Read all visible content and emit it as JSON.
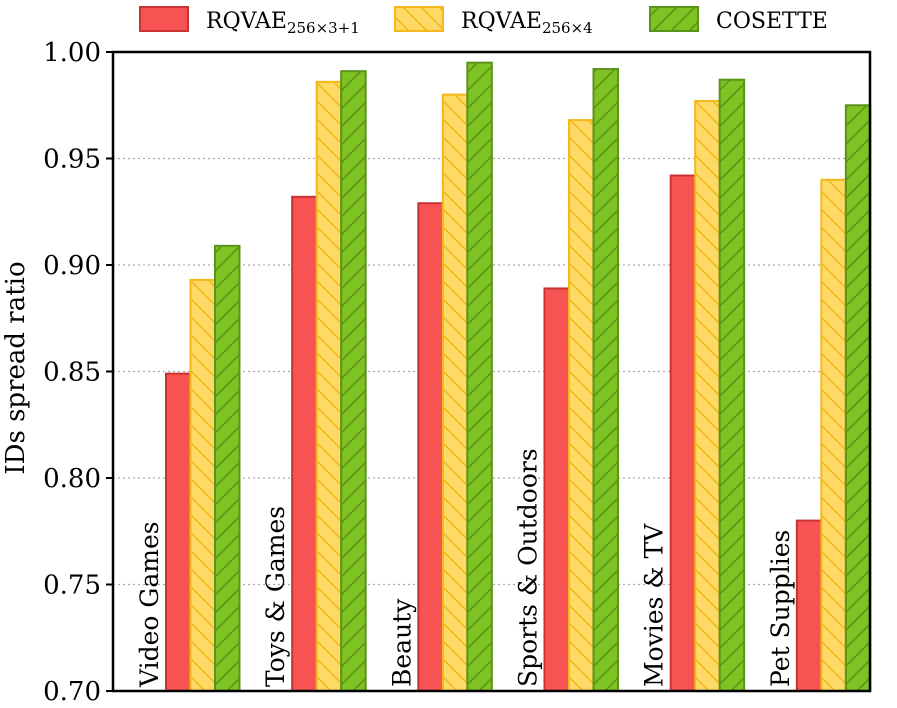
{
  "chart_data": {
    "type": "bar",
    "title": "",
    "xlabel": "",
    "ylabel": "IDs spread ratio",
    "ylim": [
      0.7,
      1.0
    ],
    "yticks": [
      "0.70",
      "0.75",
      "0.80",
      "0.85",
      "0.90",
      "0.95",
      "1.00"
    ],
    "grid": "horizontal-dotted",
    "legend_position": "top",
    "categories": [
      "Video Games",
      "Toys & Games",
      "Beauty",
      "Sports & Outdoors",
      "Movies & TV",
      "Pet Supplies"
    ],
    "series": [
      {
        "name": "RQVAE",
        "subscript": "256×3+1",
        "color": "#f75353",
        "edge": "#c93333",
        "hatch": "none",
        "values": [
          0.849,
          0.932,
          0.929,
          0.889,
          0.942,
          0.78
        ]
      },
      {
        "name": "RQVAE",
        "subscript": "256×4",
        "color": "#ffd966",
        "edge": "#f2b81c",
        "hatch": "backslash",
        "values": [
          0.893,
          0.986,
          0.98,
          0.968,
          0.977,
          0.94
        ]
      },
      {
        "name": "COSETTE",
        "subscript": "",
        "color": "#7fc224",
        "edge": "#5a9418",
        "hatch": "slash",
        "values": [
          0.909,
          0.991,
          0.995,
          0.992,
          0.987,
          0.975
        ]
      }
    ]
  }
}
